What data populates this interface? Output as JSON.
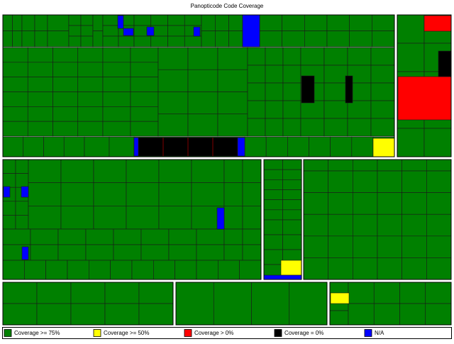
{
  "title": "Panopticode Code Coverage",
  "legend": [
    {
      "label": "Coverage >= 75%",
      "color": "#008000"
    },
    {
      "label": "Coverage >= 50%",
      "color": "#ffff00"
    },
    {
      "label": "Coverage > 0%",
      "color": "#ff0000"
    },
    {
      "label": "Coverage = 0%",
      "color": "#000000"
    },
    {
      "label": "N/A",
      "color": "#0000ff"
    }
  ]
}
